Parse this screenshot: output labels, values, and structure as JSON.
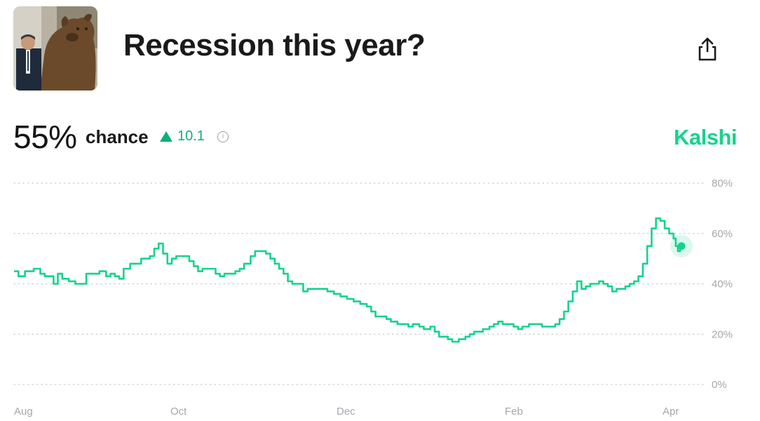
{
  "header": {
    "title": "Recession this year?",
    "share_icon": "share-icon",
    "thumbnail": "bear-statue-with-man-photo"
  },
  "stat": {
    "percent": "55%",
    "label": "chance",
    "delta": "10.1",
    "delta_direction": "up",
    "delta_color": "#0fae7a",
    "info_icon": "info-icon"
  },
  "brand": {
    "name": "Kalshi",
    "color": "#15d38c"
  },
  "chart_data": {
    "type": "line",
    "title": "",
    "xlabel": "",
    "ylabel": "",
    "ylim": [
      0,
      80
    ],
    "y_ticks": [
      {
        "value": 80,
        "label": "80%"
      },
      {
        "value": 60,
        "label": "60%"
      },
      {
        "value": 40,
        "label": "40%"
      },
      {
        "value": 20,
        "label": "20%"
      },
      {
        "value": 0,
        "label": "0%"
      }
    ],
    "x_ticks": [
      {
        "day": 0,
        "label": "Aug"
      },
      {
        "day": 61,
        "label": "Oct"
      },
      {
        "day": 122,
        "label": "Dec"
      },
      {
        "day": 184,
        "label": "Feb"
      },
      {
        "day": 243,
        "label": "Apr"
      }
    ],
    "grid": true,
    "line_color": "#15d38c",
    "series": [
      {
        "values": [
          [
            0,
            45
          ],
          [
            2,
            43
          ],
          [
            5,
            45
          ],
          [
            9,
            46
          ],
          [
            12,
            44
          ],
          [
            14,
            43
          ],
          [
            16,
            43
          ],
          [
            18,
            40
          ],
          [
            20,
            44
          ],
          [
            22,
            42
          ],
          [
            25,
            41
          ],
          [
            28,
            40
          ],
          [
            30,
            40
          ],
          [
            33,
            44
          ],
          [
            36,
            44
          ],
          [
            39,
            45
          ],
          [
            42,
            43
          ],
          [
            44,
            44
          ],
          [
            46,
            43
          ],
          [
            48,
            42
          ],
          [
            50,
            46
          ],
          [
            53,
            48
          ],
          [
            56,
            48
          ],
          [
            58,
            50
          ],
          [
            60,
            50
          ],
          [
            62,
            51
          ],
          [
            64,
            54
          ],
          [
            66,
            56
          ],
          [
            68,
            52
          ],
          [
            70,
            48
          ],
          [
            72,
            50
          ],
          [
            74,
            51
          ],
          [
            77,
            51
          ],
          [
            80,
            49
          ],
          [
            82,
            47
          ],
          [
            84,
            45
          ],
          [
            86,
            46
          ],
          [
            89,
            46
          ],
          [
            92,
            44
          ],
          [
            94,
            43
          ],
          [
            96,
            44
          ],
          [
            98,
            44
          ],
          [
            101,
            45
          ],
          [
            103,
            46
          ],
          [
            105,
            48
          ],
          [
            108,
            51
          ],
          [
            110,
            53
          ],
          [
            112,
            53
          ],
          [
            115,
            52
          ],
          [
            117,
            50
          ],
          [
            119,
            48
          ],
          [
            121,
            46
          ],
          [
            123,
            44
          ],
          [
            125,
            41
          ],
          [
            127,
            40
          ],
          [
            130,
            40
          ],
          [
            132,
            37
          ],
          [
            134,
            38
          ],
          [
            137,
            38
          ],
          [
            140,
            38
          ],
          [
            143,
            37
          ],
          [
            146,
            36
          ],
          [
            149,
            35
          ],
          [
            152,
            34
          ],
          [
            155,
            33
          ],
          [
            158,
            32
          ],
          [
            161,
            31
          ],
          [
            163,
            29
          ],
          [
            165,
            27
          ],
          [
            168,
            27
          ],
          [
            170,
            26
          ],
          [
            172,
            25
          ],
          [
            175,
            24
          ],
          [
            178,
            24
          ],
          [
            180,
            23
          ],
          [
            182,
            24
          ],
          [
            185,
            23
          ],
          [
            187,
            22
          ],
          [
            190,
            23
          ],
          [
            192,
            21
          ],
          [
            194,
            19
          ],
          [
            196,
            19
          ],
          [
            198,
            18
          ],
          [
            200,
            17
          ],
          [
            203,
            18
          ],
          [
            206,
            19
          ],
          [
            208,
            20
          ],
          [
            210,
            21
          ],
          [
            212,
            21
          ],
          [
            214,
            22
          ],
          [
            217,
            23
          ],
          [
            219,
            24
          ],
          [
            221,
            25
          ],
          [
            223,
            24
          ],
          [
            226,
            24
          ],
          [
            228,
            23
          ],
          [
            230,
            22
          ],
          [
            232,
            23
          ],
          [
            235,
            24
          ],
          [
            238,
            24
          ],
          [
            241,
            23
          ],
          [
            243,
            23
          ],
          [
            245,
            23
          ],
          [
            247,
            24
          ],
          [
            249,
            26
          ],
          [
            251,
            29
          ],
          [
            253,
            33
          ],
          [
            255,
            37
          ],
          [
            257,
            41
          ],
          [
            259,
            38
          ],
          [
            261,
            39
          ],
          [
            263,
            40
          ],
          [
            265,
            40
          ],
          [
            267,
            41
          ],
          [
            269,
            40
          ],
          [
            271,
            39
          ],
          [
            273,
            37
          ],
          [
            275,
            38
          ],
          [
            277,
            38
          ],
          [
            279,
            39
          ],
          [
            281,
            40
          ],
          [
            283,
            41
          ],
          [
            285,
            43
          ],
          [
            287,
            48
          ],
          [
            289,
            55
          ],
          [
            291,
            62
          ],
          [
            293,
            66
          ],
          [
            295,
            65
          ],
          [
            297,
            62
          ],
          [
            299,
            60
          ],
          [
            301,
            58
          ],
          [
            302,
            55
          ],
          [
            303,
            53
          ],
          [
            304,
            55
          ]
        ]
      }
    ],
    "current_value": 55
  }
}
